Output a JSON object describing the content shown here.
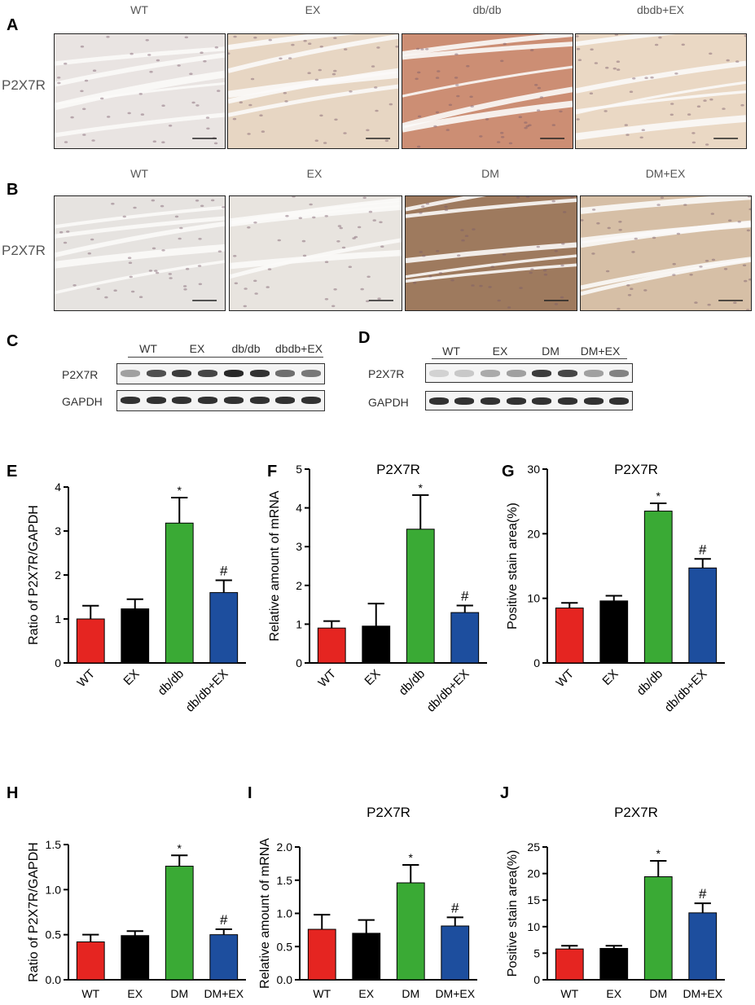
{
  "panels": {
    "A": {
      "letter": "A",
      "row_label": "P2X7R",
      "columns": [
        "WT",
        "EX",
        "db/db",
        "dbdb+EX"
      ],
      "tints": [
        "#e9e4e2",
        "#e7d6c3",
        "#cc8e74",
        "#ead8c4"
      ]
    },
    "B": {
      "letter": "B",
      "row_label": "P2X7R",
      "columns": [
        "WT",
        "EX",
        "DM",
        "DM+EX"
      ],
      "tints": [
        "#e6e3e0",
        "#e8e4df",
        "#9e7a5e",
        "#d6bfa6"
      ]
    },
    "C": {
      "letter": "C",
      "groups": [
        "WT",
        "EX",
        "db/db",
        "dbdb+EX"
      ],
      "rows": [
        "P2X7R",
        "GAPDH"
      ],
      "band_darkness": [
        0.35,
        0.75,
        0.85,
        0.8,
        0.95,
        0.9,
        0.6,
        0.55
      ]
    },
    "D": {
      "letter": "D",
      "groups": [
        "WT",
        "EX",
        "DM",
        "DM+EX"
      ],
      "rows": [
        "P2X7R",
        "GAPDH"
      ],
      "band_darkness": [
        0.1,
        0.15,
        0.3,
        0.35,
        0.85,
        0.8,
        0.35,
        0.5
      ]
    }
  },
  "colors": {
    "WT": "#e52521",
    "EX": "#000000",
    "diabetic": "#3aaa35",
    "treated": "#1d4e9e"
  },
  "chart_data": [
    {
      "letter": "E",
      "type": "bar",
      "title": "",
      "ylabel": "Ratio of P2X7R/GAPDH",
      "categories": [
        "WT",
        "EX",
        "db/db",
        "db/db+EX"
      ],
      "values": [
        1.0,
        1.23,
        3.18,
        1.6
      ],
      "errors": [
        0.3,
        0.22,
        0.58,
        0.28
      ],
      "annotations": [
        "",
        "",
        "*",
        "#"
      ],
      "ylim": [
        0,
        4
      ],
      "yticks": [
        "0",
        "1",
        "2",
        "3",
        "4"
      ],
      "tick_rotation": -45
    },
    {
      "letter": "F",
      "type": "bar",
      "title": "P2X7R",
      "ylabel": "Relative amount of mRNA",
      "categories": [
        "WT",
        "EX",
        "db/db",
        "db/db+EX"
      ],
      "values": [
        0.9,
        0.95,
        3.45,
        1.3
      ],
      "errors": [
        0.18,
        0.58,
        0.88,
        0.18
      ],
      "annotations": [
        "",
        "",
        "*",
        "#"
      ],
      "ylim": [
        0,
        5
      ],
      "yticks": [
        "0",
        "1",
        "2",
        "3",
        "4",
        "5"
      ],
      "tick_rotation": -45
    },
    {
      "letter": "G",
      "type": "bar",
      "title": "P2X7R",
      "ylabel": "Positive stain area(%)",
      "categories": [
        "WT",
        "EX",
        "db/db",
        "db/db+EX"
      ],
      "values": [
        8.5,
        9.6,
        23.5,
        14.7
      ],
      "errors": [
        0.8,
        0.8,
        1.2,
        1.4
      ],
      "annotations": [
        "",
        "",
        "*",
        "#"
      ],
      "ylim": [
        0,
        30
      ],
      "yticks": [
        "0",
        "10",
        "20",
        "30"
      ],
      "tick_rotation": -45
    },
    {
      "letter": "H",
      "type": "bar",
      "title": "",
      "ylabel": "Ratio of P2X7R/GAPDH",
      "categories": [
        "WT",
        "EX",
        "DM",
        "DM+EX"
      ],
      "values": [
        0.42,
        0.49,
        1.26,
        0.5
      ],
      "errors": [
        0.08,
        0.05,
        0.12,
        0.06
      ],
      "annotations": [
        "",
        "",
        "*",
        "#"
      ],
      "ylim": [
        0,
        1.5
      ],
      "yticks": [
        "0.0",
        "0.5",
        "1.0",
        "1.5"
      ],
      "tick_rotation": 0
    },
    {
      "letter": "I",
      "type": "bar",
      "title": "P2X7R",
      "ylabel": "Relative amount of mRNA",
      "categories": [
        "WT",
        "EX",
        "DM",
        "DM+EX"
      ],
      "values": [
        0.76,
        0.7,
        1.46,
        0.81
      ],
      "errors": [
        0.22,
        0.2,
        0.27,
        0.13
      ],
      "annotations": [
        "",
        "",
        "*",
        "#"
      ],
      "ylim": [
        0,
        2.0
      ],
      "yticks": [
        "0.0",
        "0.5",
        "1.0",
        "1.5",
        "2.0"
      ],
      "tick_rotation": 0
    },
    {
      "letter": "J",
      "type": "bar",
      "title": "P2X7R",
      "ylabel": "Positive stain area(%)",
      "categories": [
        "WT",
        "EX",
        "DM",
        "DM+EX"
      ],
      "values": [
        5.8,
        5.9,
        19.4,
        12.6
      ],
      "errors": [
        0.6,
        0.5,
        3.0,
        1.8
      ],
      "annotations": [
        "",
        "",
        "*",
        "#"
      ],
      "ylim": [
        0,
        25
      ],
      "yticks": [
        "0",
        "5",
        "10",
        "15",
        "20",
        "25"
      ],
      "tick_rotation": 0
    }
  ]
}
